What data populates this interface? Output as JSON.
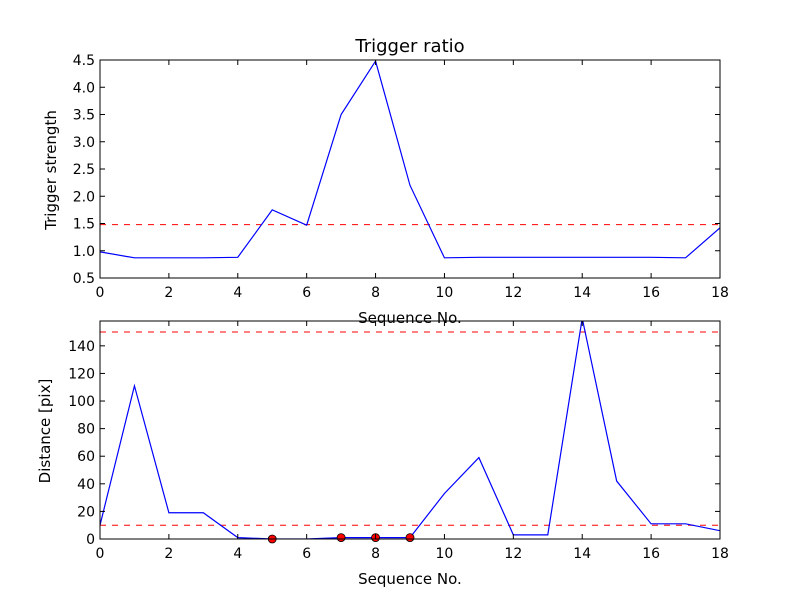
{
  "chart_data": [
    {
      "type": "line",
      "title": "Trigger ratio",
      "xlabel": "Sequence No.",
      "ylabel": "Trigger strength",
      "xlim": [
        0,
        18
      ],
      "ylim": [
        0.5,
        4.5
      ],
      "xticks": [
        0,
        2,
        4,
        6,
        8,
        10,
        12,
        14,
        16,
        18
      ],
      "yticks": [
        0.5,
        1.0,
        1.5,
        2.0,
        2.5,
        3.0,
        3.5,
        4.0,
        4.5
      ],
      "ytick_labels": [
        "0.5",
        "1.0",
        "1.5",
        "2.0",
        "2.5",
        "3.0",
        "3.5",
        "4.0",
        "4.5"
      ],
      "series": [
        {
          "x": [
            0,
            1,
            2,
            3,
            4,
            5,
            6,
            7,
            8,
            9,
            10,
            11,
            12,
            13,
            14,
            15,
            16,
            17,
            18
          ],
          "values": [
            0.98,
            0.87,
            0.87,
            0.87,
            0.88,
            1.75,
            1.47,
            3.5,
            4.48,
            2.2,
            0.87,
            0.88,
            0.88,
            0.88,
            0.88,
            0.88,
            0.88,
            0.87,
            1.42
          ],
          "color": "#0000ff"
        }
      ],
      "hlines": [
        {
          "y": 1.48,
          "color": "#ff0000",
          "style": "dashed"
        }
      ],
      "markers": []
    },
    {
      "type": "line",
      "title": "",
      "xlabel": "Sequence No.",
      "ylabel": "Distance [pix]",
      "xlim": [
        0,
        18
      ],
      "ylim": [
        0,
        158
      ],
      "xticks": [
        0,
        2,
        4,
        6,
        8,
        10,
        12,
        14,
        16,
        18
      ],
      "yticks": [
        0,
        20,
        40,
        60,
        80,
        100,
        120,
        140
      ],
      "ytick_labels": [
        "0",
        "20",
        "40",
        "60",
        "80",
        "100",
        "120",
        "140"
      ],
      "series": [
        {
          "x": [
            0,
            1,
            2,
            3,
            4,
            5,
            6,
            7,
            8,
            9,
            10,
            11,
            12,
            13,
            14,
            15,
            16,
            17,
            18
          ],
          "values": [
            10,
            111,
            19,
            19,
            1,
            0,
            0,
            1,
            1,
            1,
            33,
            59,
            3,
            3,
            160,
            42,
            11,
            11,
            6
          ],
          "color": "#0000ff"
        }
      ],
      "hlines": [
        {
          "y": 150,
          "color": "#ff0000",
          "style": "dashed"
        },
        {
          "y": 10,
          "color": "#ff0000",
          "style": "dashed"
        }
      ],
      "markers": [
        {
          "x": 5,
          "y": 0
        },
        {
          "x": 7,
          "y": 1
        },
        {
          "x": 8,
          "y": 1
        },
        {
          "x": 9,
          "y": 1
        }
      ]
    }
  ]
}
